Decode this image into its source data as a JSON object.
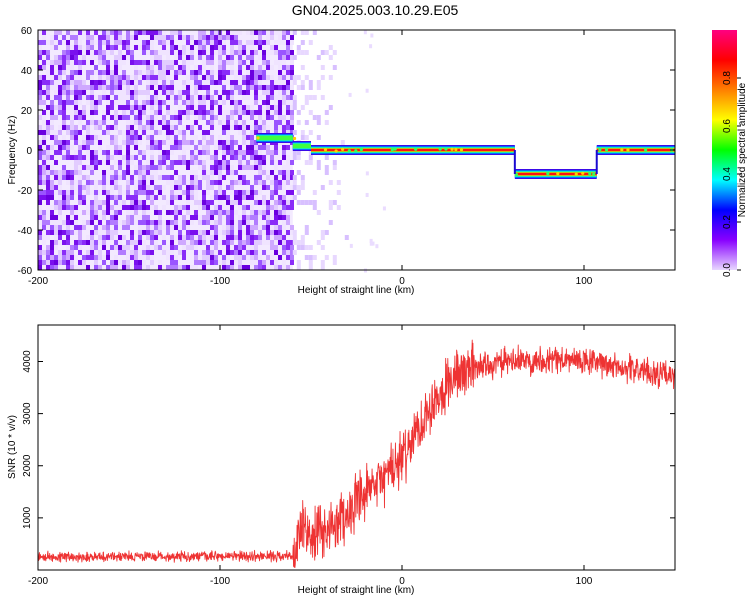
{
  "figure": {
    "title": "GN04.2025.003.10.29.E05"
  },
  "chart_data": [
    {
      "type": "heatmap",
      "xlabel": "Height of straight line (km)",
      "ylabel": "Frequency (Hz)",
      "xlim": [
        -200,
        150
      ],
      "ylim": [
        -60,
        60
      ],
      "x_ticks": [
        -200,
        -100,
        0,
        100
      ],
      "y_ticks": [
        -60,
        -40,
        -20,
        0,
        20,
        40,
        60
      ],
      "colorbar": {
        "label": "Normalized spectral amplitude",
        "range": [
          0.0,
          1.0
        ],
        "ticks": [
          0.0,
          0.2,
          0.4,
          0.6,
          0.8
        ],
        "colormap": [
          "#e8d8ff",
          "#8800ff",
          "#0000ff",
          "#00ffff",
          "#00ff00",
          "#ffff00",
          "#ff8000",
          "#ff0000",
          "#ff0080"
        ]
      },
      "noise_region": {
        "x_range": [
          -200,
          -60
        ],
        "level": 0.1
      },
      "signal_segments": [
        {
          "x_range": [
            -80,
            -60
          ],
          "frequency": 6,
          "amplitude": 0.45
        },
        {
          "x_range": [
            -60,
            -50
          ],
          "frequency": 2,
          "amplitude": 0.6
        },
        {
          "x_range": [
            -50,
            62
          ],
          "frequency": 0,
          "amplitude": 0.95
        },
        {
          "x_range": [
            62,
            107
          ],
          "frequency": -12,
          "amplitude": 0.95
        },
        {
          "x_range": [
            107,
            150
          ],
          "frequency": 0,
          "amplitude": 0.95
        }
      ],
      "grid": false
    },
    {
      "type": "line",
      "xlabel": "Height of straight line (km)",
      "ylabel": "SNR (10 * v/v)",
      "xlim": [
        -200,
        150
      ],
      "ylim": [
        0,
        4700
      ],
      "x_ticks": [
        -200,
        -100,
        0,
        100
      ],
      "y_ticks": [
        1000,
        2000,
        3000,
        4000
      ],
      "color": "#ee3333",
      "series": [
        {
          "x": [
            -200,
            -150,
            -100,
            -60,
            -55,
            -50,
            -40,
            -30,
            -20,
            -10,
            0,
            10,
            20,
            30,
            40,
            60,
            80,
            100,
            120,
            150
          ],
          "values": [
            250,
            260,
            260,
            270,
            800,
            600,
            800,
            1100,
            1400,
            1800,
            2100,
            2800,
            3400,
            3750,
            3900,
            4000,
            4050,
            4000,
            3900,
            3700
          ]
        }
      ],
      "noise_amplitude": [
        {
          "x_range": [
            -200,
            -60
          ],
          "amplitude": 120
        },
        {
          "x_range": [
            -60,
            40
          ],
          "amplitude": 650
        },
        {
          "x_range": [
            40,
            150
          ],
          "amplitude": 330
        }
      ],
      "grid": false
    }
  ]
}
